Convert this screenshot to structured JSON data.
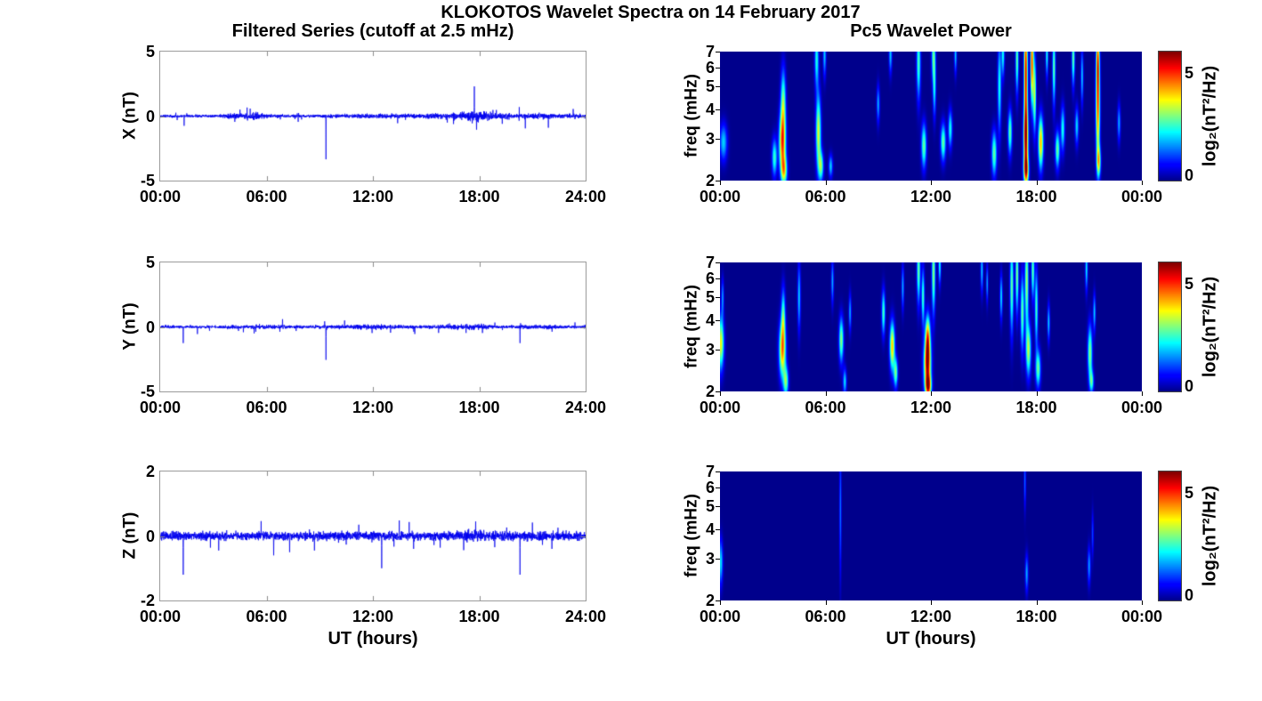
{
  "figure_title": "KLOKOTOS Wavelet Spectra on 14 February 2017",
  "columns": {
    "left_subtitle": "Filtered Series (cutoff at 2.5 mHz)",
    "right_subtitle": "Pc5 Wavelet Power",
    "left_xlabel": "UT (hours)",
    "right_xlabel": "UT (hours)"
  },
  "colorbar": {
    "label": "log₂(nT²/Hz)",
    "tick_values": [
      0,
      5
    ],
    "tick_labels": [
      "0",
      "5"
    ],
    "min": 0,
    "max": 6
  },
  "chart_data": [
    {
      "type": "line",
      "panel": "X filtered series",
      "ylabel": "X (nT)",
      "line_color": "#0000ee",
      "ylim": [
        -5,
        5
      ],
      "ytick_values": [
        5,
        0,
        -5
      ],
      "ytick_labels": [
        "5",
        "0",
        "-5"
      ],
      "xlim_hours": [
        0,
        24
      ],
      "xtick_labels": [
        "00:00",
        "06:00",
        "12:00",
        "18:00",
        "24:00"
      ],
      "seed": 101,
      "noise_envelope_nT": [
        [
          0,
          0.1
        ],
        [
          1.5,
          0.09
        ],
        [
          3.3,
          0.1
        ],
        [
          4.2,
          0.2
        ],
        [
          4.7,
          0.13
        ],
        [
          5.4,
          0.26
        ],
        [
          5.9,
          0.13
        ],
        [
          6.8,
          0.1
        ],
        [
          8.5,
          0.09
        ],
        [
          9.3,
          0.11
        ],
        [
          10.5,
          0.11
        ],
        [
          11.5,
          0.15
        ],
        [
          12.3,
          0.15
        ],
        [
          13.5,
          0.13
        ],
        [
          14.5,
          0.13
        ],
        [
          15.5,
          0.17
        ],
        [
          16.5,
          0.19
        ],
        [
          17.2,
          0.24
        ],
        [
          17.8,
          0.42
        ],
        [
          18.3,
          0.28
        ],
        [
          19.0,
          0.2
        ],
        [
          20.0,
          0.15
        ],
        [
          21.0,
          0.16
        ],
        [
          21.6,
          0.21
        ],
        [
          22.3,
          0.13
        ],
        [
          23.2,
          0.15
        ],
        [
          24,
          0.11
        ]
      ],
      "spikes_hour_nT": [
        [
          1.35,
          -0.75
        ],
        [
          4.5,
          0.5
        ],
        [
          9.35,
          -3.35
        ],
        [
          13.4,
          -0.55
        ],
        [
          16.2,
          -0.5
        ],
        [
          17.72,
          2.3
        ],
        [
          17.85,
          -1.05
        ],
        [
          19.3,
          -0.6
        ],
        [
          20.6,
          -0.95
        ],
        [
          21.9,
          -0.9
        ],
        [
          23.3,
          0.55
        ]
      ]
    },
    {
      "type": "line",
      "panel": "Y filtered series",
      "ylabel": "Y (nT)",
      "line_color": "#0000ee",
      "ylim": [
        -5,
        5
      ],
      "ytick_values": [
        5,
        0,
        -5
      ],
      "ytick_labels": [
        "5",
        "0",
        "-5"
      ],
      "xlim_hours": [
        0,
        24
      ],
      "xtick_labels": [
        "00:00",
        "06:00",
        "12:00",
        "18:00",
        "24:00"
      ],
      "seed": 202,
      "noise_envelope_nT": [
        [
          0,
          0.1
        ],
        [
          1.2,
          0.08
        ],
        [
          3.4,
          0.09
        ],
        [
          4.0,
          0.14
        ],
        [
          4.8,
          0.1
        ],
        [
          6.2,
          0.13
        ],
        [
          7.2,
          0.12
        ],
        [
          8.5,
          0.09
        ],
        [
          9.8,
          0.11
        ],
        [
          10.6,
          0.14
        ],
        [
          11.4,
          0.16
        ],
        [
          12.0,
          0.18
        ],
        [
          12.8,
          0.15
        ],
        [
          14.0,
          0.11
        ],
        [
          15.2,
          0.11
        ],
        [
          16.2,
          0.14
        ],
        [
          17.0,
          0.17
        ],
        [
          17.6,
          0.21
        ],
        [
          18.2,
          0.17
        ],
        [
          19.2,
          0.1
        ],
        [
          20.2,
          0.09
        ],
        [
          21.2,
          0.14
        ],
        [
          21.8,
          0.15
        ],
        [
          22.6,
          0.1
        ],
        [
          24,
          0.09
        ]
      ],
      "spikes_hour_nT": [
        [
          1.3,
          -1.25
        ],
        [
          2.1,
          -0.55
        ],
        [
          5.3,
          -0.5
        ],
        [
          6.9,
          0.6
        ],
        [
          9.35,
          -2.55
        ],
        [
          10.4,
          0.5
        ],
        [
          13.0,
          -0.45
        ],
        [
          20.3,
          -1.25
        ],
        [
          23.4,
          0.35
        ]
      ]
    },
    {
      "type": "line",
      "panel": "Z filtered series",
      "ylabel": "Z (nT)",
      "line_color": "#0000ee",
      "ylim": [
        -2,
        2
      ],
      "ytick_values": [
        2,
        0,
        -2
      ],
      "ytick_labels": [
        "2",
        "0",
        "-2"
      ],
      "xlim_hours": [
        0,
        24
      ],
      "xtick_labels": [
        "00:00",
        "06:00",
        "12:00",
        "18:00",
        "24:00"
      ],
      "seed": 303,
      "noise_envelope_nT": [
        [
          0,
          0.11
        ],
        [
          4,
          0.1
        ],
        [
          8,
          0.1
        ],
        [
          12,
          0.11
        ],
        [
          16,
          0.11
        ],
        [
          17.6,
          0.15
        ],
        [
          18.6,
          0.12
        ],
        [
          21.6,
          0.13
        ],
        [
          24,
          0.1
        ]
      ],
      "spikes_hour_nT": [
        [
          1.3,
          -1.2
        ],
        [
          3.3,
          -0.45
        ],
        [
          6.4,
          -0.6
        ],
        [
          7.3,
          -0.5
        ],
        [
          8.7,
          -0.45
        ],
        [
          11.2,
          0.35
        ],
        [
          12.5,
          -1.0
        ],
        [
          14.3,
          -0.4
        ],
        [
          17.8,
          0.45
        ],
        [
          20.3,
          -1.2
        ],
        [
          22.1,
          -0.4
        ]
      ]
    },
    {
      "type": "heatmap",
      "panel": "X wavelet power",
      "ylabel": "freq (mHz)",
      "yscale": "log",
      "ylim_mhz": [
        2,
        7
      ],
      "ytick_values": [
        7,
        6,
        5,
        4,
        3,
        2
      ],
      "ytick_labels": [
        "7",
        "6",
        "5",
        "4",
        "3",
        "2"
      ],
      "xlim_hours": [
        0,
        24
      ],
      "xtick_labels": [
        "00:00",
        "06:00",
        "12:00",
        "18:00",
        "00:00"
      ],
      "clim": [
        0,
        6
      ],
      "blobs_t_f_power_sigt_sigf": [
        [
          0.2,
          2.9,
          2.0,
          0.15,
          0.1
        ],
        [
          3.1,
          2.5,
          2.6,
          0.1,
          0.1
        ],
        [
          3.55,
          2.9,
          4.7,
          0.13,
          0.16
        ],
        [
          3.6,
          4.3,
          2.8,
          0.1,
          0.18
        ],
        [
          3.65,
          2.2,
          3.2,
          0.12,
          0.08
        ],
        [
          5.6,
          3.2,
          3.6,
          0.1,
          0.2
        ],
        [
          5.75,
          2.3,
          2.8,
          0.1,
          0.08
        ],
        [
          5.5,
          6.5,
          2.4,
          0.08,
          0.15
        ],
        [
          5.95,
          6.8,
          2.0,
          0.06,
          0.12
        ],
        [
          6.3,
          2.3,
          2.0,
          0.08,
          0.06
        ],
        [
          9.0,
          4.2,
          1.8,
          0.06,
          0.1
        ],
        [
          9.7,
          6.8,
          2.0,
          0.06,
          0.1
        ],
        [
          11.3,
          6.3,
          2.7,
          0.08,
          0.2
        ],
        [
          11.6,
          2.8,
          2.9,
          0.1,
          0.12
        ],
        [
          12.15,
          6.8,
          2.7,
          0.08,
          0.15
        ],
        [
          12.2,
          4.8,
          2.0,
          0.06,
          0.15
        ],
        [
          12.7,
          2.9,
          2.9,
          0.1,
          0.1
        ],
        [
          13.1,
          3.3,
          2.4,
          0.08,
          0.1
        ],
        [
          13.4,
          6.8,
          2.0,
          0.05,
          0.1
        ],
        [
          15.6,
          2.6,
          2.9,
          0.1,
          0.12
        ],
        [
          15.9,
          5.0,
          2.4,
          0.07,
          0.25
        ],
        [
          16.1,
          6.8,
          2.4,
          0.06,
          0.12
        ],
        [
          16.5,
          3.2,
          2.9,
          0.08,
          0.12
        ],
        [
          16.9,
          6.5,
          2.9,
          0.06,
          0.18
        ],
        [
          17.4,
          5.8,
          5.5,
          0.07,
          0.3
        ],
        [
          17.4,
          3.0,
          5.3,
          0.09,
          0.18
        ],
        [
          17.42,
          2.2,
          4.2,
          0.1,
          0.08
        ],
        [
          17.75,
          6.3,
          5.0,
          0.06,
          0.22
        ],
        [
          17.9,
          4.6,
          3.4,
          0.06,
          0.2
        ],
        [
          18.25,
          2.9,
          4.2,
          0.1,
          0.14
        ],
        [
          18.6,
          6.8,
          2.4,
          0.05,
          0.12
        ],
        [
          19.0,
          6.0,
          2.9,
          0.06,
          0.2
        ],
        [
          19.2,
          2.7,
          2.9,
          0.09,
          0.1
        ],
        [
          19.5,
          3.3,
          2.4,
          0.08,
          0.12
        ],
        [
          20.1,
          6.6,
          2.9,
          0.06,
          0.15
        ],
        [
          20.3,
          3.4,
          2.1,
          0.07,
          0.1
        ],
        [
          20.6,
          5.5,
          2.0,
          0.05,
          0.15
        ],
        [
          21.5,
          4.2,
          4.9,
          0.08,
          0.3
        ],
        [
          21.5,
          6.5,
          2.9,
          0.06,
          0.15
        ],
        [
          21.55,
          2.4,
          3.1,
          0.08,
          0.08
        ],
        [
          22.7,
          3.5,
          1.8,
          0.06,
          0.1
        ]
      ]
    },
    {
      "type": "heatmap",
      "panel": "Y wavelet power",
      "ylabel": "freq (mHz)",
      "yscale": "log",
      "ylim_mhz": [
        2,
        7
      ],
      "ytick_values": [
        7,
        6,
        5,
        4,
        3,
        2
      ],
      "ytick_labels": [
        "7",
        "6",
        "5",
        "4",
        "3",
        "2"
      ],
      "xlim_hours": [
        0,
        24
      ],
      "xtick_labels": [
        "00:00",
        "06:00",
        "12:00",
        "18:00",
        "00:00"
      ],
      "clim": [
        0,
        6
      ],
      "blobs_t_f_power_sigt_sigf": [
        [
          0.05,
          3.2,
          3.7,
          0.12,
          0.14
        ],
        [
          0.15,
          5.0,
          1.6,
          0.05,
          0.1
        ],
        [
          3.55,
          3.0,
          4.4,
          0.13,
          0.15
        ],
        [
          3.6,
          4.2,
          2.4,
          0.08,
          0.15
        ],
        [
          3.75,
          2.2,
          2.9,
          0.1,
          0.08
        ],
        [
          4.5,
          5.0,
          2.0,
          0.06,
          0.18
        ],
        [
          6.4,
          5.8,
          1.8,
          0.05,
          0.12
        ],
        [
          6.9,
          3.3,
          3.1,
          0.09,
          0.12
        ],
        [
          7.1,
          2.2,
          2.1,
          0.07,
          0.07
        ],
        [
          7.4,
          4.3,
          1.8,
          0.05,
          0.1
        ],
        [
          9.3,
          4.3,
          2.7,
          0.07,
          0.12
        ],
        [
          9.8,
          3.1,
          4.1,
          0.1,
          0.13
        ],
        [
          10.0,
          2.4,
          2.9,
          0.08,
          0.08
        ],
        [
          10.4,
          5.5,
          1.8,
          0.05,
          0.12
        ],
        [
          11.3,
          6.5,
          2.9,
          0.07,
          0.18
        ],
        [
          11.55,
          5.0,
          2.7,
          0.06,
          0.15
        ],
        [
          11.8,
          2.6,
          5.4,
          0.14,
          0.13
        ],
        [
          11.82,
          3.4,
          4.0,
          0.1,
          0.12
        ],
        [
          11.85,
          2.1,
          4.4,
          0.12,
          0.06
        ],
        [
          12.15,
          6.3,
          3.1,
          0.07,
          0.22
        ],
        [
          12.5,
          6.8,
          2.4,
          0.05,
          0.1
        ],
        [
          14.9,
          6.5,
          2.0,
          0.05,
          0.12
        ],
        [
          15.2,
          5.7,
          1.8,
          0.04,
          0.1
        ],
        [
          16.0,
          5.0,
          2.2,
          0.05,
          0.12
        ],
        [
          16.6,
          5.5,
          2.9,
          0.07,
          0.25
        ],
        [
          16.9,
          6.2,
          3.1,
          0.06,
          0.2
        ],
        [
          17.2,
          4.3,
          2.9,
          0.07,
          0.2
        ],
        [
          17.45,
          5.8,
          3.3,
          0.07,
          0.25
        ],
        [
          17.55,
          3.0,
          3.3,
          0.1,
          0.14
        ],
        [
          17.8,
          6.5,
          2.9,
          0.06,
          0.15
        ],
        [
          18.0,
          4.5,
          2.7,
          0.06,
          0.2
        ],
        [
          18.1,
          2.5,
          2.9,
          0.1,
          0.1
        ],
        [
          18.7,
          3.9,
          2.0,
          0.05,
          0.1
        ],
        [
          20.85,
          6.6,
          2.2,
          0.05,
          0.12
        ],
        [
          21.05,
          2.9,
          3.1,
          0.09,
          0.15
        ],
        [
          21.15,
          2.2,
          2.4,
          0.08,
          0.06
        ],
        [
          21.3,
          4.3,
          2.0,
          0.05,
          0.1
        ]
      ]
    },
    {
      "type": "heatmap",
      "panel": "Z wavelet power",
      "ylabel": "freq (mHz)",
      "yscale": "log",
      "ylim_mhz": [
        2,
        7
      ],
      "ytick_values": [
        7,
        6,
        5,
        4,
        3,
        2
      ],
      "ytick_labels": [
        "7",
        "6",
        "5",
        "4",
        "3",
        "2"
      ],
      "xlim_hours": [
        0,
        24
      ],
      "xtick_labels": [
        "00:00",
        "06:00",
        "12:00",
        "18:00",
        "00:00"
      ],
      "clim": [
        0,
        6
      ],
      "blobs_t_f_power_sigt_sigf": [
        [
          0.05,
          2.9,
          2.1,
          0.08,
          0.12
        ],
        [
          6.85,
          4.8,
          1.5,
          0.04,
          0.35
        ],
        [
          17.35,
          6.4,
          1.4,
          0.04,
          0.15
        ],
        [
          17.45,
          2.6,
          1.8,
          0.06,
          0.1
        ],
        [
          21.0,
          2.8,
          1.7,
          0.06,
          0.1
        ],
        [
          21.2,
          3.8,
          1.2,
          0.04,
          0.12
        ]
      ]
    }
  ]
}
